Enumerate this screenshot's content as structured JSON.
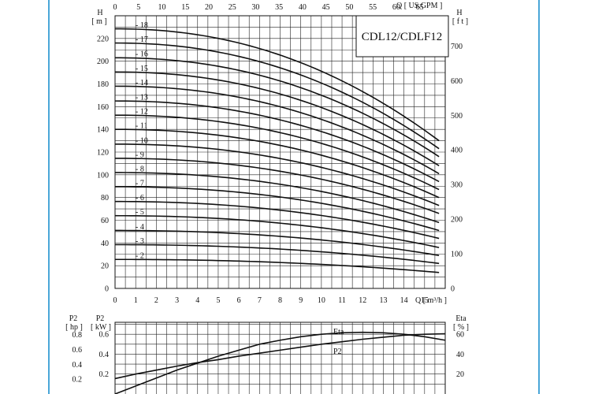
{
  "chart_data": [
    {
      "type": "line",
      "title": "CDL12/CDLF12",
      "y_left_symbol": "H",
      "y_left_unit": "[ m ]",
      "y_right_symbol": "H",
      "y_right_unit": "[ f t ]",
      "x_top_unit": "Q [ US.GPM ]",
      "x_bottom_unit": "Q [ m³/h ]",
      "xlim": [
        0,
        16
      ],
      "ylim": [
        0,
        240
      ],
      "grid": true,
      "x_ticks": [
        "0",
        "1",
        "2",
        "3",
        "4",
        "5",
        "6",
        "7",
        "8",
        "9",
        "10",
        "11",
        "12",
        "13",
        "14",
        "15"
      ],
      "x_top_ticks": [
        "0",
        "5",
        "10",
        "15",
        "20",
        "25",
        "30",
        "35",
        "40",
        "45",
        "50",
        "55",
        "60",
        "65"
      ],
      "y_ticks": [
        "0",
        "20",
        "40",
        "60",
        "80",
        "100",
        "120",
        "140",
        "160",
        "180",
        "200",
        "220"
      ],
      "y_right_ticks": [
        "0",
        "100",
        "200",
        "300",
        "400",
        "500",
        "600",
        "700"
      ],
      "series": [
        {
          "name": "2",
          "h0": 25.5,
          "q_end": 15.7,
          "h_end": 14
        },
        {
          "name": "3",
          "h0": 38.5,
          "q_end": 15.7,
          "h_end": 22
        },
        {
          "name": "4",
          "h0": 51,
          "q_end": 15.7,
          "h_end": 29
        },
        {
          "name": "5",
          "h0": 64,
          "q_end": 15.7,
          "h_end": 36
        },
        {
          "name": "6",
          "h0": 76.5,
          "q_end": 15.7,
          "h_end": 44
        },
        {
          "name": "7",
          "h0": 89.5,
          "q_end": 15.7,
          "h_end": 51
        },
        {
          "name": "8",
          "h0": 102,
          "q_end": 15.7,
          "h_end": 58
        },
        {
          "name": "9",
          "h0": 114.5,
          "q_end": 15.7,
          "h_end": 66
        },
        {
          "name": "10",
          "h0": 127,
          "q_end": 15.7,
          "h_end": 73
        },
        {
          "name": "11",
          "h0": 140,
          "q_end": 15.7,
          "h_end": 80
        },
        {
          "name": "12",
          "h0": 152.5,
          "q_end": 15.7,
          "h_end": 87
        },
        {
          "name": "13",
          "h0": 165,
          "q_end": 15.7,
          "h_end": 94
        },
        {
          "name": "14",
          "h0": 178,
          "q_end": 15.7,
          "h_end": 101
        },
        {
          "name": "15",
          "h0": 190.5,
          "q_end": 15.7,
          "h_end": 108
        },
        {
          "name": "16",
          "h0": 203,
          "q_end": 15.7,
          "h_end": 116
        },
        {
          "name": "17",
          "h0": 216,
          "q_end": 15.7,
          "h_end": 123
        },
        {
          "name": "18",
          "h0": 228.5,
          "q_end": 15.7,
          "h_end": 130
        }
      ]
    },
    {
      "type": "line",
      "xlim": [
        0,
        16
      ],
      "ylim": [
        0,
        0.7
      ],
      "y_left_outer_symbol": "P2",
      "y_left_outer_unit": "[ hp ]",
      "y_left_symbol": "P2",
      "y_left_unit": "[ kW ]",
      "y_right_symbol": "Eta",
      "y_right_unit": "[ % ]",
      "y_outer_ticks": [
        "0.8",
        "0.6",
        "0.4",
        "0.2"
      ],
      "y_ticks": [
        "0.6",
        "0.4",
        "0.2"
      ],
      "y_right_ticks": [
        "60",
        "40",
        "20"
      ],
      "series": [
        {
          "name": "Eta",
          "x": [
            0,
            1,
            2,
            3,
            4,
            5,
            6,
            7,
            8,
            9,
            10,
            11,
            12,
            13,
            14,
            15,
            16
          ],
          "y_percent": [
            0,
            8,
            16,
            24,
            31,
            38,
            44,
            50,
            54,
            57.5,
            60,
            61.5,
            62,
            61.5,
            60,
            57.5,
            54
          ]
        },
        {
          "name": "P2",
          "x": [
            0,
            1,
            2,
            3,
            4,
            5,
            6,
            7,
            8,
            9,
            10,
            11,
            12,
            13,
            14,
            15,
            16
          ],
          "y": [
            0.155,
            0.2,
            0.24,
            0.28,
            0.315,
            0.345,
            0.38,
            0.41,
            0.44,
            0.47,
            0.5,
            0.525,
            0.55,
            0.57,
            0.59,
            0.6,
            0.605
          ]
        }
      ]
    }
  ],
  "colors": {
    "frame": "#4aa6d8",
    "ink": "#111111",
    "grid": "#222222"
  }
}
